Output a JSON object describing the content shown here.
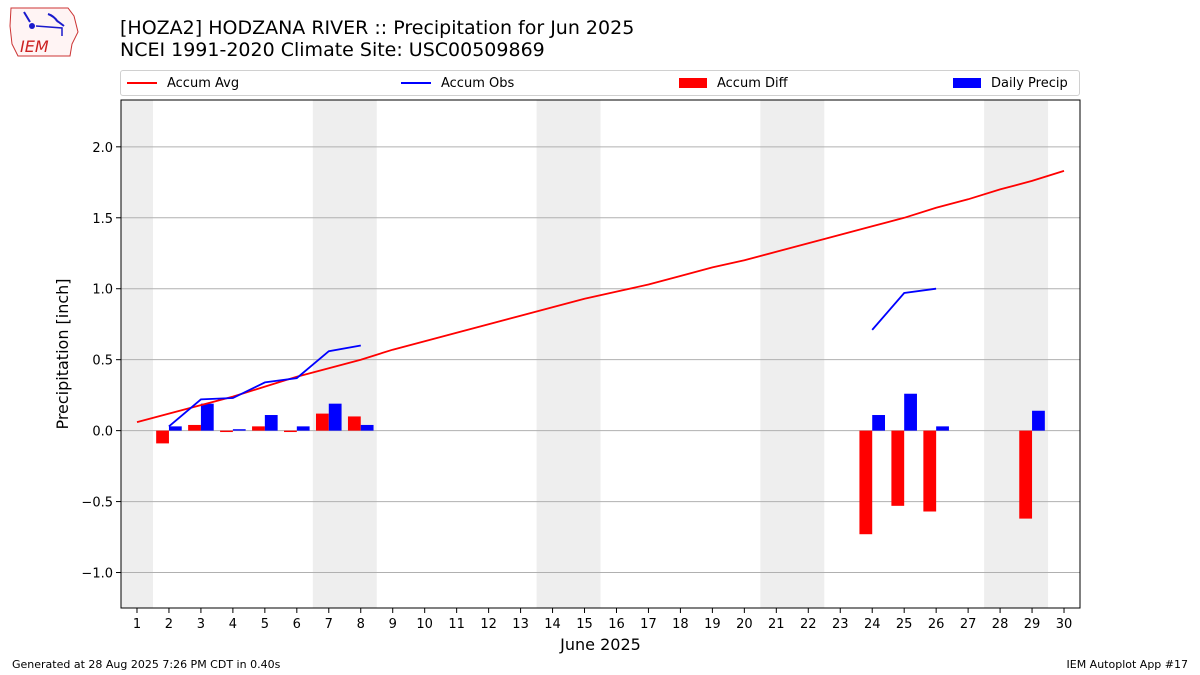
{
  "header": {
    "title_line1": "[HOZA2] HODZANA RIVER :: Precipitation for Jun 2025",
    "title_line2": "NCEI 1991-2020 Climate Site: USC00509869",
    "logo_text": "IEM"
  },
  "footer": {
    "left": "Generated at 28 Aug 2025 7:26 PM CDT in 0.40s",
    "right": "IEM Autoplot App #17"
  },
  "colors": {
    "avg": "#ff0000",
    "obs": "#0000ff",
    "diff": "#ff0000",
    "daily": "#0000ff",
    "weekend_band": "#eeeeee",
    "grid": "#b0b0b0"
  },
  "chart_data": {
    "type": "bar",
    "xlabel": "June 2025",
    "ylabel": "Precipitation [inch]",
    "ylim": [
      -1.25,
      2.33
    ],
    "xlim": [
      0.5,
      30.5
    ],
    "yticks": [
      -1.0,
      -0.5,
      0.0,
      0.5,
      1.0,
      1.5,
      2.0
    ],
    "ytick_labels": [
      "−1.0",
      "−0.5",
      "0.0",
      "0.5",
      "1.0",
      "1.5",
      "2.0"
    ],
    "days": [
      1,
      2,
      3,
      4,
      5,
      6,
      7,
      8,
      9,
      10,
      11,
      12,
      13,
      14,
      15,
      16,
      17,
      18,
      19,
      20,
      21,
      22,
      23,
      24,
      25,
      26,
      27,
      28,
      29,
      30
    ],
    "day_labels": [
      "1",
      "2",
      "3",
      "4",
      "5",
      "6",
      "7",
      "8",
      "9",
      "10",
      "11",
      "12",
      "13",
      "14",
      "15",
      "16",
      "17",
      "18",
      "19",
      "20",
      "21",
      "22",
      "23",
      "24",
      "25",
      "26",
      "27",
      "28",
      "29",
      "30"
    ],
    "weekend_spans": [
      [
        0.5,
        1.5
      ],
      [
        6.5,
        8.5
      ],
      [
        13.5,
        15.5
      ],
      [
        20.5,
        22.5
      ],
      [
        27.5,
        29.5
      ]
    ],
    "grid": true,
    "legend_position": "top",
    "legend": [
      "Accum Avg",
      "Accum Obs",
      "Accum Diff",
      "Daily Precip"
    ],
    "series": [
      {
        "name": "Accum Avg",
        "kind": "line",
        "values": [
          0.06,
          0.12,
          0.18,
          0.24,
          0.31,
          0.38,
          0.44,
          0.5,
          0.57,
          0.63,
          0.69,
          0.75,
          0.81,
          0.87,
          0.93,
          0.98,
          1.03,
          1.09,
          1.15,
          1.2,
          1.26,
          1.32,
          1.38,
          1.44,
          1.5,
          1.57,
          1.63,
          1.7,
          1.76,
          1.83
        ]
      },
      {
        "name": "Accum Obs",
        "kind": "line",
        "values": [
          null,
          0.03,
          0.22,
          0.23,
          0.34,
          0.37,
          0.56,
          0.6,
          null,
          null,
          null,
          null,
          null,
          null,
          null,
          null,
          null,
          null,
          null,
          null,
          null,
          null,
          null,
          0.71,
          0.97,
          1.0,
          null,
          null,
          null,
          null
        ]
      },
      {
        "name": "Accum Diff",
        "kind": "bar",
        "values": [
          null,
          -0.09,
          0.04,
          -0.01,
          0.03,
          -0.01,
          0.12,
          0.1,
          null,
          null,
          null,
          null,
          null,
          null,
          null,
          null,
          null,
          null,
          null,
          null,
          null,
          null,
          null,
          -0.73,
          -0.53,
          -0.57,
          null,
          null,
          -0.62,
          null
        ]
      },
      {
        "name": "Daily Precip",
        "kind": "bar",
        "values": [
          null,
          0.03,
          0.19,
          0.01,
          0.11,
          0.03,
          0.19,
          0.04,
          null,
          null,
          null,
          null,
          null,
          null,
          null,
          null,
          null,
          null,
          null,
          null,
          null,
          null,
          null,
          0.11,
          0.26,
          0.03,
          null,
          null,
          0.14,
          null
        ]
      }
    ]
  }
}
